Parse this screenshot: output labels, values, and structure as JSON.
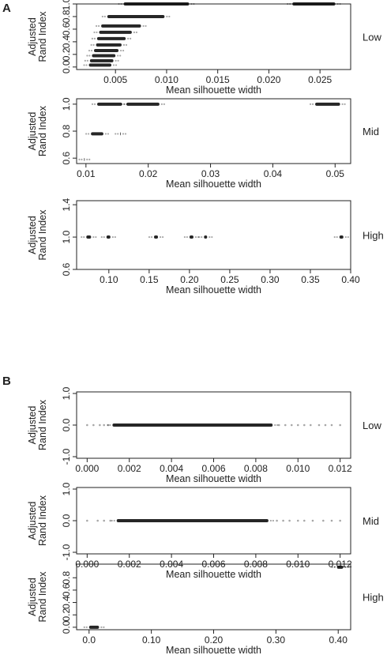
{
  "panel_labels": [
    "A",
    "B"
  ],
  "chart_data": [
    {
      "type": "scatter",
      "panel": "A",
      "condition": "Low",
      "xlabel": "Mean silhouette width",
      "ylabel": [
        "Adjusted",
        "Rand Index"
      ],
      "xlim": [
        0.0012,
        0.028
      ],
      "ylim": [
        -0.04,
        1.0
      ],
      "xticks": [
        0.005,
        0.01,
        0.015,
        0.02,
        0.025
      ],
      "xtick_labels": [
        "0.005",
        "0.010",
        "0.015",
        "0.020",
        "0.025"
      ],
      "yticks": [
        0.0,
        0.2,
        0.4,
        0.6,
        0.8,
        1.0
      ],
      "ytick_labels": [
        "0.0",
        "0.2",
        "0.4",
        "0.6",
        "0.8",
        "1.0"
      ],
      "clusters": [
        {
          "x": [
            0.0058,
            0.0122
          ],
          "y": 1.0
        },
        {
          "x": [
            0.0223,
            0.0265
          ],
          "y": 1.0
        },
        {
          "x": [
            0.0042,
            0.0098
          ],
          "y": 0.8
        },
        {
          "x": [
            0.0036,
            0.0075
          ],
          "y": 0.65
        },
        {
          "x": [
            0.0034,
            0.0066
          ],
          "y": 0.55
        },
        {
          "x": [
            0.0032,
            0.006
          ],
          "y": 0.45
        },
        {
          "x": [
            0.0031,
            0.0056
          ],
          "y": 0.35
        },
        {
          "x": [
            0.0029,
            0.0053
          ],
          "y": 0.26
        },
        {
          "x": [
            0.0027,
            0.005
          ],
          "y": 0.18
        },
        {
          "x": [
            0.0025,
            0.0048
          ],
          "y": 0.1
        },
        {
          "x": [
            0.0024,
            0.0046
          ],
          "y": 0.03
        }
      ]
    },
    {
      "type": "scatter",
      "panel": "A",
      "condition": "Mid",
      "xlabel": "Mean silhouette width",
      "ylabel": [
        "Adjusted",
        "Rand Index"
      ],
      "xlim": [
        0.0085,
        0.0525
      ],
      "ylim": [
        0.56,
        1.04
      ],
      "xticks": [
        0.01,
        0.02,
        0.03,
        0.04,
        0.05
      ],
      "xtick_labels": [
        "0.01",
        "0.02",
        "0.03",
        "0.04",
        "0.05"
      ],
      "yticks": [
        0.6,
        0.8,
        1.0
      ],
      "ytick_labels": [
        "0.6",
        "0.8",
        "1.0"
      ],
      "clusters": [
        {
          "x": [
            0.0118,
            0.0158
          ],
          "y": 1.0
        },
        {
          "x": [
            0.0165,
            0.0218
          ],
          "y": 1.0
        },
        {
          "x": [
            0.0468,
            0.0508
          ],
          "y": 1.0
        },
        {
          "x": [
            0.0108,
            0.0128
          ],
          "y": 0.78
        },
        {
          "x": [
            0.0155,
            0.0156
          ],
          "y": 0.78
        },
        {
          "x": [
            0.0097,
            0.0098
          ],
          "y": 0.59
        }
      ]
    },
    {
      "type": "scatter",
      "panel": "A",
      "condition": "High",
      "xlabel": "Mean silhouette width",
      "ylabel": [
        "Adjusted",
        "Rand Index"
      ],
      "xlim": [
        0.06,
        0.4
      ],
      "ylim": [
        0.6,
        1.45
      ],
      "xticks": [
        0.1,
        0.15,
        0.2,
        0.25,
        0.3,
        0.35,
        0.4
      ],
      "xtick_labels": [
        "0.10",
        "0.15",
        "0.20",
        "0.25",
        "0.30",
        "0.35",
        "0.40"
      ],
      "yticks": [
        0.6,
        1.0,
        1.4
      ],
      "ytick_labels": [
        "0.6",
        "1.0",
        "1.4"
      ],
      "clusters": [
        {
          "x": [
            0.072,
            0.078
          ],
          "y": 1.0
        },
        {
          "x": [
            0.097,
            0.102
          ],
          "y": 1.0
        },
        {
          "x": [
            0.156,
            0.161
          ],
          "y": 1.0
        },
        {
          "x": [
            0.2,
            0.205
          ],
          "y": 1.0
        },
        {
          "x": [
            0.218,
            0.222
          ],
          "y": 1.0
        },
        {
          "x": [
            0.386,
            0.391
          ],
          "y": 1.0
        }
      ]
    },
    {
      "type": "scatter",
      "panel": "B",
      "condition": "Low",
      "xlabel": "Mean silhouette width",
      "ylabel": [
        "Adjusted",
        "Rand Index"
      ],
      "xlim": [
        -0.0005,
        0.0125
      ],
      "ylim": [
        -1.05,
        1.05
      ],
      "xticks": [
        0.0,
        0.002,
        0.004,
        0.006,
        0.008,
        0.01,
        0.012
      ],
      "xtick_labels": [
        "0.000",
        "0.002",
        "0.004",
        "0.006",
        "0.008",
        "0.010",
        "0.012"
      ],
      "yticks": [
        -1.0,
        0.0,
        1.0
      ],
      "ytick_labels": [
        "-1.0",
        "0.0",
        "1.0"
      ],
      "clusters": [
        {
          "x": [
            0.0012,
            0.0088
          ],
          "y": 0.0
        }
      ],
      "sparse_points": {
        "y": 0.0,
        "x": [
          0.0,
          0.0003,
          0.0006,
          0.0008,
          0.001,
          0.0091,
          0.0094,
          0.0097,
          0.01,
          0.0103,
          0.0106,
          0.011,
          0.0113,
          0.0116,
          0.012
        ]
      }
    },
    {
      "type": "scatter",
      "panel": "B",
      "condition": "Mid",
      "xlabel": "Mean silhouette width",
      "ylabel": [
        "Adjusted",
        "Rand Index"
      ],
      "xlim": [
        -0.0005,
        0.0125
      ],
      "ylim": [
        -1.05,
        1.05
      ],
      "xticks": [
        0.0,
        0.002,
        0.004,
        0.006,
        0.008,
        0.01,
        0.012
      ],
      "xtick_labels": [
        "0.000",
        "0.002",
        "0.004",
        "0.006",
        "0.008",
        "0.010",
        "0.012"
      ],
      "yticks": [
        -1.0,
        0.0,
        1.0
      ],
      "ytick_labels": [
        "-1.0",
        "0.0",
        "1.0"
      ],
      "clusters": [
        {
          "x": [
            0.0014,
            0.0086
          ],
          "y": 0.0
        }
      ],
      "sparse_points": {
        "y": 0.0,
        "x": [
          0.0,
          0.0005,
          0.0008,
          0.0011,
          0.009,
          0.0093,
          0.0096,
          0.01,
          0.0103,
          0.0107,
          0.0112,
          0.0116,
          0.012
        ]
      }
    },
    {
      "type": "scatter",
      "panel": "B",
      "condition": "High",
      "xlabel": "Mean silhouette width",
      "ylabel": [
        "Adjusted",
        "Rand Index"
      ],
      "xlim": [
        -0.02,
        0.42
      ],
      "ylim": [
        -0.04,
        1.02
      ],
      "xticks": [
        0.0,
        0.1,
        0.2,
        0.3,
        0.4
      ],
      "xtick_labels": [
        "0.0",
        "0.10",
        "0.20",
        "0.30",
        "0.40"
      ],
      "yticks": [
        0.0,
        0.2,
        0.4,
        0.6,
        0.8
      ],
      "ytick_labels": [
        "0.0",
        "0.2",
        "0.4",
        "0.6",
        "0.8"
      ],
      "clusters": [
        {
          "x": [
            0.0,
            0.016
          ],
          "y": 0.0
        },
        {
          "x": [
            0.398,
            0.408
          ],
          "y": 0.97
        }
      ]
    }
  ]
}
